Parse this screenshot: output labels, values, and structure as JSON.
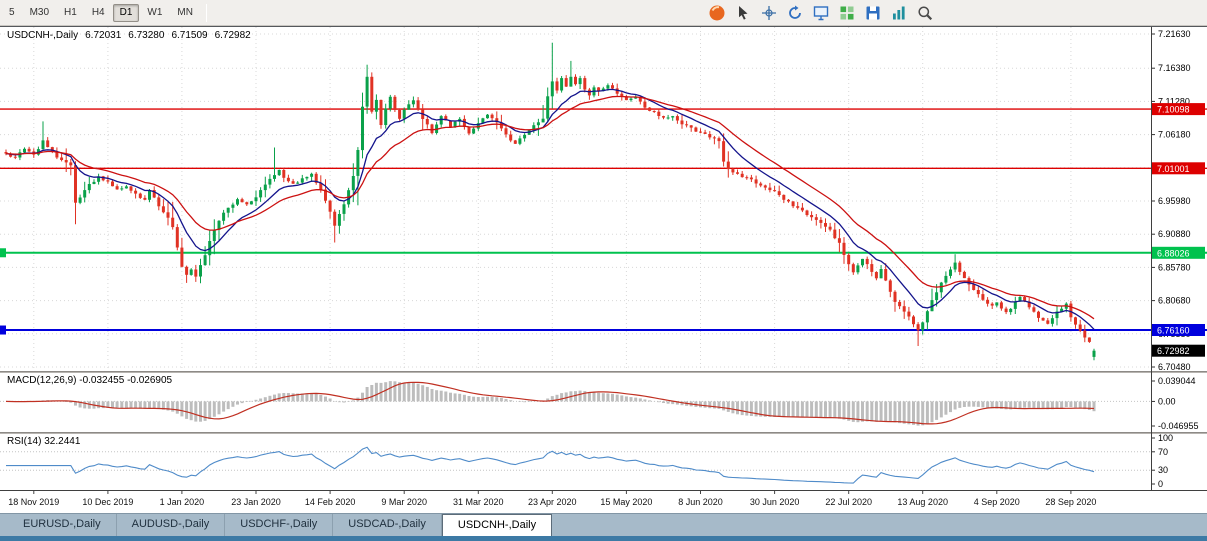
{
  "toolbar": {
    "timeframes": [
      {
        "label": "5",
        "active": false
      },
      {
        "label": "M30",
        "active": false
      },
      {
        "label": "H1",
        "active": false
      },
      {
        "label": "H4",
        "active": false
      },
      {
        "label": "D1",
        "active": true
      },
      {
        "label": "W1",
        "active": false
      },
      {
        "label": "MN",
        "active": false
      }
    ],
    "icons": [
      {
        "name": "browser-icon",
        "shape": "circle",
        "color": "#e8671f"
      },
      {
        "name": "cursor-icon",
        "shape": "cursor",
        "color": "#3a3a3a"
      },
      {
        "name": "crosshair-icon",
        "shape": "crosshair",
        "color": "#3a6ea5"
      },
      {
        "name": "refresh-icon",
        "shape": "refresh",
        "color": "#2f6fc1"
      },
      {
        "name": "new-chart-icon",
        "shape": "monitor",
        "color": "#2f6fc1"
      },
      {
        "name": "tile-windows-icon",
        "shape": "grid",
        "color": "#3fae49"
      },
      {
        "name": "save-icon",
        "shape": "floppy",
        "color": "#2f6fc1"
      },
      {
        "name": "chart-bars-icon",
        "shape": "bars",
        "color": "#1f8f9e"
      },
      {
        "name": "zoom-in-icon",
        "shape": "zoom",
        "color": "#4a4a4a"
      }
    ]
  },
  "chart": {
    "info": {
      "symbol": "USDCNH-,Daily",
      "open": "6.72031",
      "high": "6.73280",
      "low": "6.71509",
      "close": "6.72982"
    },
    "macd_label": "MACD(12,26,9) -0.032455 -0.026905",
    "rsi_label": "RSI(14) 32.2441"
  },
  "chart_data": {
    "type": "candlestick",
    "title": "USDCNH-,Daily",
    "candle_colors": {
      "up": "#0aa14a",
      "down": "#e03224"
    },
    "grid_color": "#d8d8d8",
    "candle_count": 236,
    "first_label_index": 6,
    "label_step": 16,
    "x_labels": [
      "18 Nov 2019",
      "10 Dec 2019",
      "1 Jan 2020",
      "23 Jan 2020",
      "14 Feb 2020",
      "9 Mar 2020",
      "31 Mar 2020",
      "23 Apr 2020",
      "15 May 2020",
      "8 Jun 2020",
      "30 Jun 2020",
      "22 Jul 2020",
      "13 Aug 2020",
      "4 Sep 2020",
      "28 Sep 2020"
    ],
    "price_ticks": [
      7.2163,
      7.1638,
      7.1128,
      7.0618,
      7.0108,
      6.9598,
      6.9088,
      6.8578,
      6.8068,
      6.7558,
      6.7048
    ],
    "y_domain": [
      6.6898,
      7.2271
    ],
    "close_anchors": [
      [
        0,
        7.032
      ],
      [
        2,
        7.026
      ],
      [
        4,
        7.042
      ],
      [
        6,
        7.03
      ],
      [
        8,
        7.052
      ],
      [
        10,
        7.034
      ],
      [
        12,
        7.022
      ],
      [
        14,
        7.016
      ],
      [
        15,
        6.956
      ],
      [
        16,
        6.964
      ],
      [
        18,
        6.986
      ],
      [
        20,
        6.996
      ],
      [
        22,
        6.99
      ],
      [
        24,
        6.977
      ],
      [
        26,
        6.983
      ],
      [
        28,
        6.97
      ],
      [
        30,
        6.961
      ],
      [
        31,
        6.977
      ],
      [
        33,
        6.953
      ],
      [
        35,
        6.934
      ],
      [
        36,
        6.918
      ],
      [
        37,
        6.888
      ],
      [
        38,
        6.86
      ],
      [
        39,
        6.847
      ],
      [
        40,
        6.853
      ],
      [
        41,
        6.843
      ],
      [
        42,
        6.86
      ],
      [
        43,
        6.877
      ],
      [
        44,
        6.9
      ],
      [
        45,
        6.914
      ],
      [
        46,
        6.928
      ],
      [
        47,
        6.941
      ],
      [
        48,
        6.951
      ],
      [
        50,
        6.961
      ],
      [
        52,
        6.955
      ],
      [
        54,
        6.967
      ],
      [
        56,
        6.985
      ],
      [
        58,
        7.0
      ],
      [
        59,
        7.007
      ],
      [
        60,
        6.995
      ],
      [
        62,
        6.986
      ],
      [
        64,
        6.993
      ],
      [
        66,
        7.0
      ],
      [
        68,
        6.976
      ],
      [
        70,
        6.945
      ],
      [
        71,
        6.922
      ],
      [
        73,
        6.954
      ],
      [
        75,
        7.0
      ],
      [
        76,
        7.038
      ],
      [
        77,
        7.106
      ],
      [
        78,
        7.15
      ],
      [
        79,
        7.095
      ],
      [
        80,
        7.117
      ],
      [
        81,
        7.078
      ],
      [
        82,
        7.101
      ],
      [
        83,
        7.119
      ],
      [
        84,
        7.098
      ],
      [
        85,
        7.088
      ],
      [
        86,
        7.101
      ],
      [
        88,
        7.115
      ],
      [
        90,
        7.086
      ],
      [
        92,
        7.066
      ],
      [
        94,
        7.089
      ],
      [
        96,
        7.074
      ],
      [
        98,
        7.086
      ],
      [
        100,
        7.062
      ],
      [
        102,
        7.081
      ],
      [
        104,
        7.091
      ],
      [
        106,
        7.079
      ],
      [
        108,
        7.061
      ],
      [
        110,
        7.048
      ],
      [
        112,
        7.061
      ],
      [
        114,
        7.075
      ],
      [
        116,
        7.088
      ],
      [
        117,
        7.12
      ],
      [
        118,
        7.145
      ],
      [
        119,
        7.13
      ],
      [
        120,
        7.148
      ],
      [
        121,
        7.136
      ],
      [
        122,
        7.152
      ],
      [
        123,
        7.14
      ],
      [
        124,
        7.148
      ],
      [
        125,
        7.132
      ],
      [
        126,
        7.122
      ],
      [
        127,
        7.135
      ],
      [
        128,
        7.128
      ],
      [
        130,
        7.138
      ],
      [
        132,
        7.125
      ],
      [
        134,
        7.114
      ],
      [
        136,
        7.118
      ],
      [
        138,
        7.104
      ],
      [
        140,
        7.096
      ],
      [
        142,
        7.086
      ],
      [
        144,
        7.091
      ],
      [
        146,
        7.078
      ],
      [
        148,
        7.071
      ],
      [
        150,
        7.064
      ],
      [
        152,
        7.058
      ],
      [
        154,
        7.052
      ],
      [
        155,
        7.022
      ],
      [
        156,
        7.008
      ],
      [
        158,
        7.001
      ],
      [
        160,
        6.995
      ],
      [
        162,
        6.988
      ],
      [
        164,
        6.981
      ],
      [
        166,
        6.973
      ],
      [
        168,
        6.962
      ],
      [
        170,
        6.953
      ],
      [
        172,
        6.944
      ],
      [
        174,
        6.936
      ],
      [
        176,
        6.926
      ],
      [
        178,
        6.914
      ],
      [
        180,
        6.894
      ],
      [
        181,
        6.878
      ],
      [
        182,
        6.862
      ],
      [
        183,
        6.851
      ],
      [
        184,
        6.86
      ],
      [
        185,
        6.872
      ],
      [
        186,
        6.864
      ],
      [
        187,
        6.85
      ],
      [
        188,
        6.843
      ],
      [
        189,
        6.855
      ],
      [
        190,
        6.838
      ],
      [
        191,
        6.822
      ],
      [
        192,
        6.806
      ],
      [
        193,
        6.798
      ],
      [
        194,
        6.788
      ],
      [
        195,
        6.781
      ],
      [
        196,
        6.772
      ],
      [
        197,
        6.762
      ],
      [
        198,
        6.772
      ],
      [
        199,
        6.79
      ],
      [
        200,
        6.806
      ],
      [
        201,
        6.82
      ],
      [
        202,
        6.836
      ],
      [
        203,
        6.846
      ],
      [
        204,
        6.856
      ],
      [
        205,
        6.864
      ],
      [
        206,
        6.85
      ],
      [
        207,
        6.84
      ],
      [
        208,
        6.832
      ],
      [
        209,
        6.822
      ],
      [
        210,
        6.816
      ],
      [
        211,
        6.808
      ],
      [
        212,
        6.802
      ],
      [
        213,
        6.798
      ],
      [
        214,
        6.804
      ],
      [
        215,
        6.794
      ],
      [
        216,
        6.788
      ],
      [
        217,
        6.795
      ],
      [
        218,
        6.806
      ],
      [
        219,
        6.812
      ],
      [
        220,
        6.806
      ],
      [
        221,
        6.798
      ],
      [
        222,
        6.79
      ],
      [
        223,
        6.782
      ],
      [
        224,
        6.776
      ],
      [
        225,
        6.77
      ],
      [
        226,
        6.778
      ],
      [
        227,
        6.788
      ],
      [
        228,
        6.796
      ],
      [
        229,
        6.804
      ],
      [
        230,
        6.782
      ],
      [
        231,
        6.772
      ],
      [
        232,
        6.762
      ],
      [
        233,
        6.752
      ],
      [
        234,
        6.742
      ],
      [
        235,
        6.73
      ]
    ],
    "spikes": [
      {
        "i": 8,
        "high": 7.082
      },
      {
        "i": 15,
        "low": 6.924
      },
      {
        "i": 39,
        "low": 6.8375
      },
      {
        "i": 41,
        "low": 6.8355
      },
      {
        "i": 58,
        "high": 7.042
      },
      {
        "i": 71,
        "low": 6.896
      },
      {
        "i": 78,
        "high": 7.168
      },
      {
        "i": 118,
        "high": 7.203
      },
      {
        "i": 122,
        "high": 7.175
      },
      {
        "i": 197,
        "low": 6.737
      },
      {
        "i": 205,
        "high": 6.878
      }
    ],
    "last_candle": {
      "open": 6.72031,
      "high": 6.7328,
      "low": 6.71509,
      "close": 6.72982
    },
    "moving_averages": [
      {
        "type": "EMA",
        "period": 10,
        "color": "#14148c"
      },
      {
        "type": "EMA",
        "period": 21,
        "color": "#cc1111"
      }
    ],
    "levels": [
      {
        "price": 7.10098,
        "color": "#dd0000",
        "width": 1.4,
        "left_marker": false
      },
      {
        "price": 7.01001,
        "color": "#dd0000",
        "width": 1.4,
        "left_marker": false
      },
      {
        "price": 6.88026,
        "color": "#00c24e",
        "width": 2,
        "left_marker": true
      },
      {
        "price": 6.7616,
        "color": "#0000dd",
        "width": 2,
        "left_marker": true
      }
    ],
    "current_price": 6.72982,
    "indicators": {
      "macd": {
        "label": "MACD(12,26,9)",
        "fast": 12,
        "slow": 26,
        "signal": 9,
        "main_value": -0.032455,
        "signal_value": -0.026905,
        "axis_max": 0.039044,
        "axis_min": -0.046955,
        "axis_labels": {
          "max": "0.039044",
          "zero": "0.00",
          "min": "-0.046955"
        },
        "bar_color": "#bdbdbd",
        "signal_color": "#c03022"
      },
      "rsi": {
        "label": "RSI(14)",
        "period": 14,
        "value": 32.2441,
        "line_color": "#4f8bc9",
        "axis_levels": [
          100,
          70,
          30,
          0
        ],
        "guide_levels": [
          70,
          30
        ]
      }
    }
  },
  "tabs": [
    {
      "label": "EURUSD-,Daily",
      "active": false
    },
    {
      "label": "AUDUSD-,Daily",
      "active": false
    },
    {
      "label": "USDCHF-,Daily",
      "active": false
    },
    {
      "label": "USDCAD-,Daily",
      "active": false
    },
    {
      "label": "USDCNH-,Daily",
      "active": true
    }
  ]
}
